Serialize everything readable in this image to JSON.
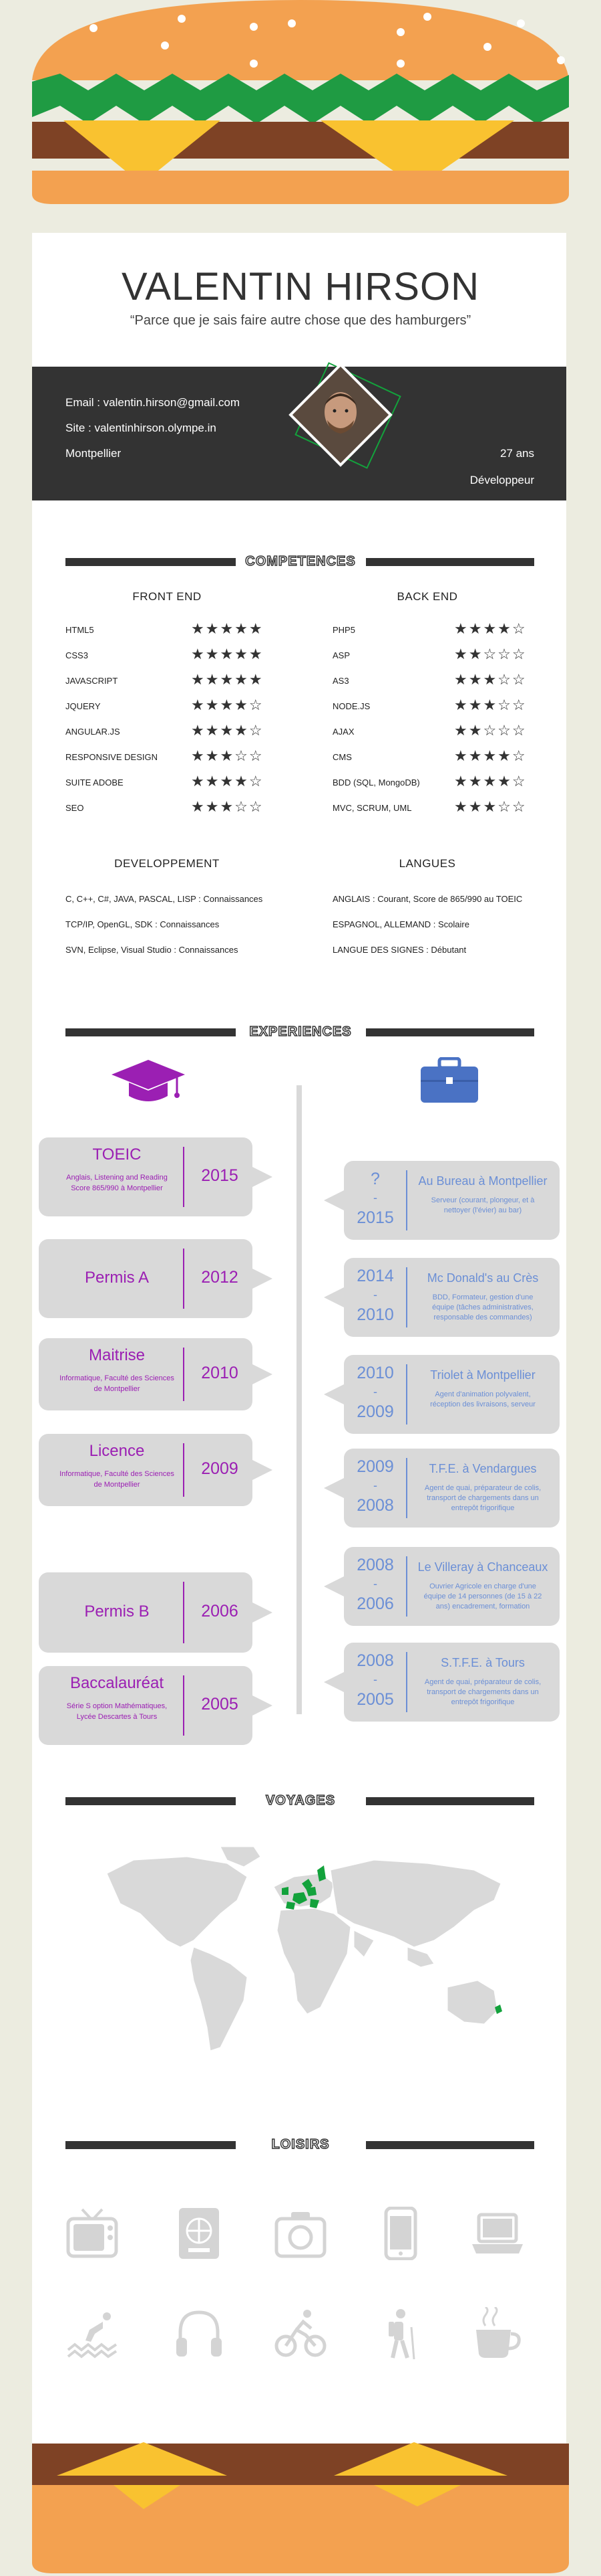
{
  "header": {
    "name": "VALENTIN HIRSON",
    "quote": "“Parce que je sais faire autre chose que des hamburgers”"
  },
  "contact": {
    "email": "Email : valentin.hirson@gmail.com",
    "site": "Site : valentinhirson.olympe.in",
    "city": "Montpellier",
    "age": "27 ans",
    "role": "Développeur"
  },
  "skills": {
    "title": "COMPETENCES",
    "front_title": "FRONT END",
    "back_title": "BACK END",
    "front": [
      {
        "label": "HTML5",
        "rating": 5
      },
      {
        "label": "CSS3",
        "rating": 5
      },
      {
        "label": "JAVASCRIPT",
        "rating": 5
      },
      {
        "label": "JQUERY",
        "rating": 4
      },
      {
        "label": "ANGULAR.JS",
        "rating": 4
      },
      {
        "label": "RESPONSIVE DESIGN",
        "rating": 3
      },
      {
        "label": "SUITE ADOBE",
        "rating": 4
      },
      {
        "label": "SEO",
        "rating": 3
      }
    ],
    "back": [
      {
        "label": "PHP5",
        "rating": 4
      },
      {
        "label": "ASP",
        "rating": 2
      },
      {
        "label": "AS3",
        "rating": 3
      },
      {
        "label": "NODE.JS",
        "rating": 3
      },
      {
        "label": "AJAX",
        "rating": 2
      },
      {
        "label": "CMS",
        "rating": 4
      },
      {
        "label": "BDD (SQL, MongoDB)",
        "rating": 4
      },
      {
        "label": "MVC, SCRUM, UML",
        "rating": 3
      }
    ],
    "dev_title": "DEVELOPPEMENT",
    "dev": [
      "C, C++, C#, JAVA, PASCAL, LISP : Connaissances",
      "TCP/IP, OpenGL, SDK : Connaissances",
      "SVN, Eclipse, Visual Studio : Connaissances"
    ],
    "lang_title": "LANGUES",
    "lang": [
      "ANGLAIS : Courant, Score de 865/990 au TOEIC",
      "ESPAGNOL, ALLEMAND : Scolaire",
      "LANGUE DES SIGNES : Débutant"
    ]
  },
  "experiences": {
    "title": "EXPERIENCES",
    "education": [
      {
        "title": "TOEIC",
        "sub": "Anglais, Listening and Reading Score 865/990 à Montpellier",
        "year": "2015"
      },
      {
        "title": "Permis A",
        "sub": "",
        "year": "2012"
      },
      {
        "title": "Maitrise",
        "sub": "Informatique, Faculté des Sciences de Montpellier",
        "year": "2010"
      },
      {
        "title": "Licence",
        "sub": "Informatique, Faculté des Sciences de Montpellier",
        "year": "2009"
      },
      {
        "title": "Permis B",
        "sub": "",
        "year": "2006"
      },
      {
        "title": "Baccalauréat",
        "sub": "Série S option Mathématiques, Lycée Descartes à Tours",
        "year": "2005"
      }
    ],
    "work": [
      {
        "title": "Au Bureau à Montpellier",
        "sub": "Serveur (courant, plongeur, et à nettoyer (l'évier) au bar)",
        "from": "?",
        "to": "2015"
      },
      {
        "title": "Mc Donald's au Crès",
        "sub": "BDD, Formateur, gestion d'une équipe (tâches administratives, responsable des commandes)",
        "from": "2014",
        "to": "2010"
      },
      {
        "title": "Triolet à Montpellier",
        "sub": "Agent d'animation polyvalent, réception des livraisons, serveur",
        "from": "2010",
        "to": "2009"
      },
      {
        "title": "T.F.E. à Vendargues",
        "sub": "Agent de quai, préparateur de colis, transport de chargements dans un entrepôt frigorifique",
        "from": "2009",
        "to": "2008"
      },
      {
        "title": "Le Villeray à Chanceaux",
        "sub": "Ouvrier Agricole en charge d'une équipe de 14 personnes (de 15 à 22 ans) encadrement, formation",
        "from": "2008",
        "to": "2006"
      },
      {
        "title": "S.T.F.E. à Tours",
        "sub": "Agent de quai, préparateur de colis, transport de chargements dans un entrepôt frigorifique",
        "from": "2008",
        "to": "2005"
      }
    ],
    "dash": "-"
  },
  "travels": {
    "title": "VOYAGES"
  },
  "hobbies": {
    "title": "LOISIRS",
    "icons": [
      "tv-icon",
      "passport-icon",
      "camera-icon",
      "smartphone-icon",
      "laptop-icon",
      "diving-icon",
      "headphones-icon",
      "cycling-icon",
      "hiking-icon",
      "coffee-icon"
    ]
  },
  "colors": {
    "purple": "#9b1fb3",
    "blue": "#6b8fd6",
    "dark": "#333333",
    "green": "#13a23c",
    "bun": "#f3a150",
    "meat": "#7e4225",
    "cheese": "#f9c230",
    "lettuce": "#1f9b43"
  }
}
